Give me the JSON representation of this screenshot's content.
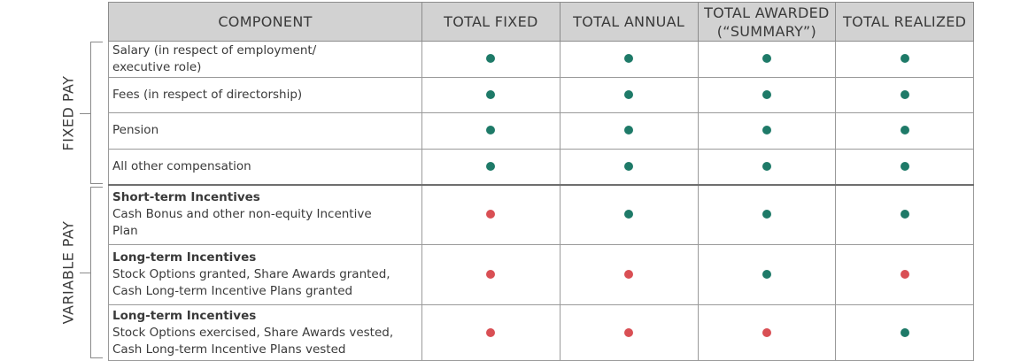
{
  "colors": {
    "included": "#1e7a68",
    "excluded": "#d94f54",
    "header_bg": "#d2d2d2"
  },
  "groups": {
    "fixed": "FIXED PAY",
    "variable": "VARIABLE PAY"
  },
  "headers": [
    {
      "lines": [
        "COMPONENT"
      ]
    },
    {
      "lines": [
        "TOTAL FIXED"
      ]
    },
    {
      "lines": [
        "TOTAL ANNUAL"
      ]
    },
    {
      "lines": [
        "TOTAL AWARDED",
        "(“SUMMARY”)"
      ]
    },
    {
      "lines": [
        "TOTAL REALIZED"
      ]
    }
  ],
  "rows": [
    {
      "title": "",
      "lines": [
        "Salary (in respect of employment/",
        "executive role)"
      ],
      "dots": [
        "green",
        "green",
        "green",
        "green"
      ]
    },
    {
      "title": "",
      "lines": [
        "Fees (in respect of directorship)"
      ],
      "dots": [
        "green",
        "green",
        "green",
        "green"
      ]
    },
    {
      "title": "",
      "lines": [
        "Pension"
      ],
      "dots": [
        "green",
        "green",
        "green",
        "green"
      ]
    },
    {
      "title": "",
      "lines": [
        "All other compensation"
      ],
      "dots": [
        "green",
        "green",
        "green",
        "green"
      ]
    },
    {
      "title": "Short-term Incentives",
      "lines": [
        "Cash Bonus and other non-equity Incentive",
        "Plan"
      ],
      "dots": [
        "red",
        "green",
        "green",
        "green"
      ]
    },
    {
      "title": "Long-term Incentives",
      "lines": [
        "Stock Options granted, Share Awards granted,",
        "Cash Long-term Incentive Plans granted"
      ],
      "dots": [
        "red",
        "red",
        "green",
        "red"
      ]
    },
    {
      "title": "Long-term Incentives",
      "lines": [
        "Stock Options exercised, Share Awards vested,",
        "Cash Long-term Incentive Plans vested"
      ],
      "dots": [
        "red",
        "red",
        "red",
        "green"
      ]
    }
  ]
}
